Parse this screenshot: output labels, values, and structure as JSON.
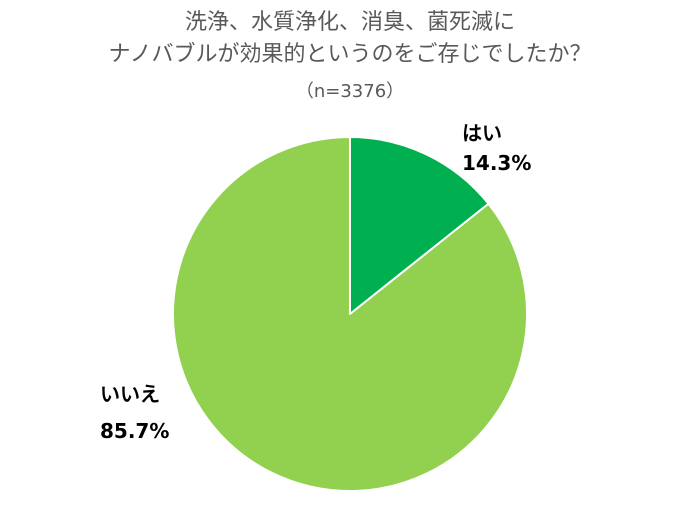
{
  "title_line1": "洗浄、水質浄化、消臭、菌死滅に",
  "title_line2": "ナノバブルが効果的というのをご存じでしたか？",
  "subtitle": "（n=3376）",
  "chart_data": {
    "type": "pie",
    "title": "洗浄、水質浄化、消臭、菌死滅に ナノバブルが効果的というのをご存じでしたか？",
    "subtitle": "（n=3376）",
    "start_angle_deg": 0,
    "direction": "clockwise",
    "slices": [
      {
        "label": "はい",
        "value": 14.3,
        "value_label": "14.3%",
        "color": "#00b050"
      },
      {
        "label": "いいえ",
        "value": 85.7,
        "value_label": "85.7%",
        "color": "#92d050"
      }
    ]
  }
}
